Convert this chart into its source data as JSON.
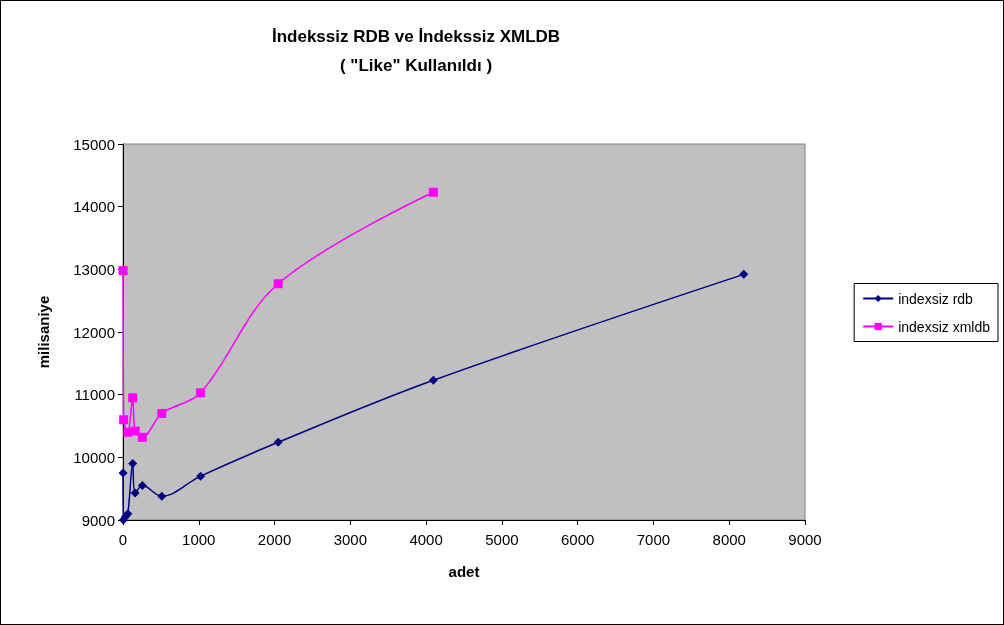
{
  "chart_data": {
    "type": "line",
    "title": "İndekssiz RDB ve İndekssiz XMLDB",
    "subtitle": "( \"Like\" Kullanıldı )",
    "xlabel": "adet",
    "ylabel": "milisaniye",
    "xlim": [
      0,
      9000
    ],
    "xticks": [
      0,
      1000,
      2000,
      3000,
      4000,
      5000,
      6000,
      7000,
      8000,
      9000
    ],
    "ylim": [
      9000,
      15000
    ],
    "yticks": [
      9000,
      10000,
      11000,
      12000,
      13000,
      14000,
      15000
    ],
    "grid": false,
    "legend": "right",
    "series": [
      {
        "name": "indexsiz rdb",
        "color": "#000080",
        "marker": "diamond",
        "x": [
          1,
          4,
          32,
          64,
          128,
          160,
          256,
          512,
          1024,
          2048,
          4096,
          8192
        ],
        "values": [
          9750,
          9000,
          9050,
          9100,
          9900,
          9430,
          9550,
          9380,
          9700,
          10240,
          11230,
          12920
        ]
      },
      {
        "name": "indexsiz xmldb",
        "color": "#ff00ff",
        "marker": "square",
        "x": [
          1,
          8,
          64,
          128,
          160,
          256,
          512,
          1024,
          2048,
          4096
        ],
        "values": [
          12980,
          10600,
          10400,
          10950,
          10420,
          10320,
          10700,
          11030,
          12770,
          14230
        ]
      }
    ]
  }
}
